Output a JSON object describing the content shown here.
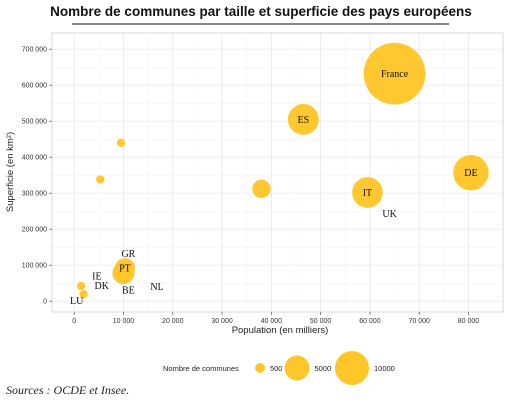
{
  "chart_data": {
    "type": "scatter",
    "title": "Nombre de communes par taille et superficie des pays européens",
    "xlabel": "Population (en milliers)",
    "ylabel": "Superficie (en km²)",
    "xlim": [
      -4500,
      87000
    ],
    "ylim": [
      -30000,
      745000
    ],
    "x_ticks": [
      0,
      10000,
      20000,
      30000,
      40000,
      50000,
      60000,
      70000,
      80000
    ],
    "x_tick_labels": [
      "0",
      "10 000",
      "20 000",
      "30 000",
      "40 000",
      "50 000",
      "60 000",
      "70 000",
      "80 000"
    ],
    "y_ticks": [
      0,
      100000,
      200000,
      300000,
      400000,
      500000,
      600000,
      700000
    ],
    "y_tick_labels": [
      "0",
      "100 000",
      "200 000",
      "300 000",
      "400 000",
      "500 000",
      "600 000",
      "700 000"
    ],
    "grid": true,
    "color": "#FFC629",
    "points": [
      {
        "label": "France",
        "x": 65000,
        "y": 632000,
        "size": 36000
      },
      {
        "label": "ES",
        "x": 46500,
        "y": 505000,
        "size": 8100
      },
      {
        "label": "DE",
        "x": 80500,
        "y": 357000,
        "size": 11000
      },
      {
        "label": "IT",
        "x": 59500,
        "y": 302000,
        "size": 8000
      },
      {
        "label": "UK",
        "x": 64000,
        "y": 243000,
        "size": 0
      },
      {
        "label": "",
        "x": 38000,
        "y": 312000,
        "size": 2500
      },
      {
        "label": "",
        "x": 9500,
        "y": 440000,
        "size": 300
      },
      {
        "label": "",
        "x": 5300,
        "y": 338000,
        "size": 300
      },
      {
        "label": "PT",
        "x": 10300,
        "y": 92000,
        "size": 3000
      },
      {
        "label": "GR",
        "x": 11000,
        "y": 132000,
        "size": 0
      },
      {
        "label": "",
        "x": 10000,
        "y": 78000,
        "size": 3800
      },
      {
        "label": "IE",
        "x": 4600,
        "y": 70000,
        "size": 0
      },
      {
        "label": "DK",
        "x": 5600,
        "y": 43000,
        "size": 0
      },
      {
        "label": "BE",
        "x": 11000,
        "y": 30500,
        "size": 0
      },
      {
        "label": "NL",
        "x": 16800,
        "y": 41500,
        "size": 0
      },
      {
        "label": "LU",
        "x": 500,
        "y": 2600,
        "size": 0
      },
      {
        "label": "",
        "x": 1400,
        "y": 42000,
        "size": 300
      },
      {
        "label": "",
        "x": 1900,
        "y": 19000,
        "size": 300
      }
    ],
    "legend": {
      "title": "Nombre de communes",
      "position": "bottom",
      "entries": [
        {
          "label": "500",
          "size": 500
        },
        {
          "label": "5000",
          "size": 5000
        },
        {
          "label": "10000",
          "size": 10000
        }
      ]
    }
  },
  "source": "Sources : OCDE et Insee."
}
